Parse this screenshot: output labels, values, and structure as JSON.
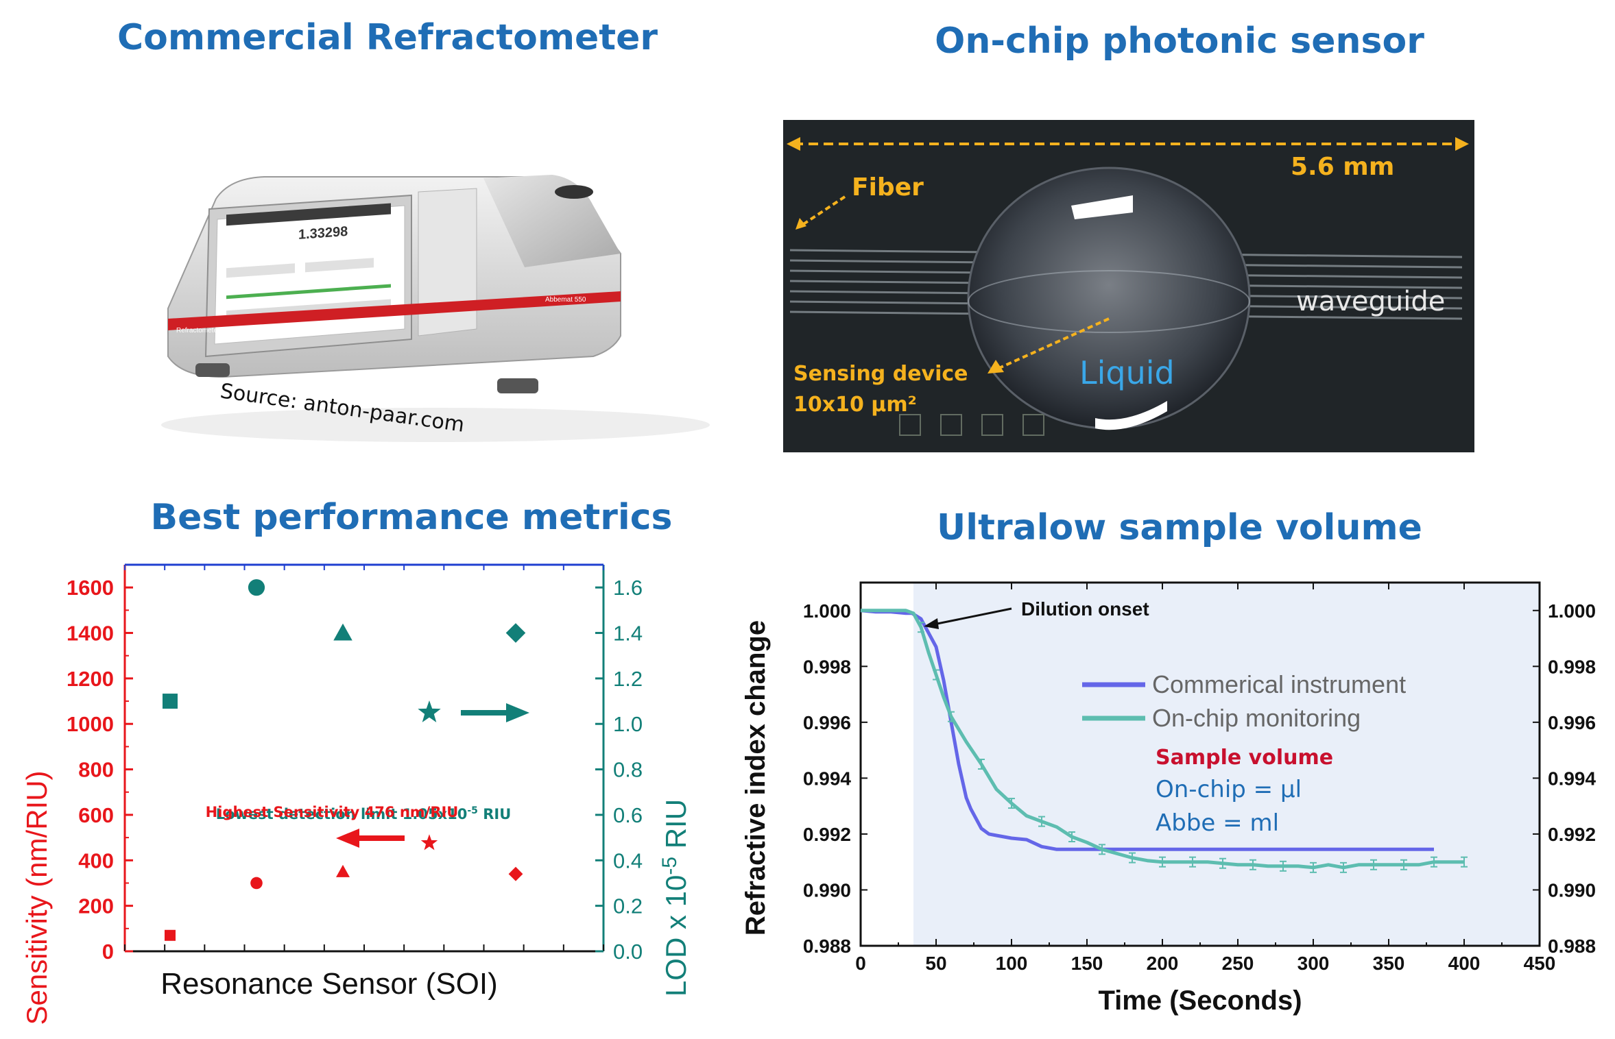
{
  "panels": {
    "top_left": {
      "title": "Commercial Refractometer",
      "source": "Source: anton-paar.com",
      "screen_value": "1.33298",
      "brand_label": "Refractometer",
      "model_label": "Abbemat 550"
    },
    "top_right": {
      "title": "On-chip photonic sensor",
      "scale": "5.6 mm",
      "fiber": "Fiber",
      "waveguide": "waveguide",
      "liquid": "Liquid",
      "sensing_line1": "Sensing device",
      "sensing_line2": "10x10 µm²"
    },
    "bottom_left": {
      "title": "Best performance metrics"
    },
    "bottom_right": {
      "title": "Ultralow sample volume"
    }
  },
  "colors": {
    "title_blue": "#1F6DB5",
    "red": "#E8161B",
    "teal": "#127F78",
    "purple": "#6466E8",
    "teal_line": "#5DBDB0",
    "shade": "#E9EFF9",
    "photo_orange": "#F5B21E"
  },
  "chart_data": [
    {
      "type": "scatter",
      "title": "Best performance metrics",
      "xlabel": "Resonance Sensor (SOI)",
      "ylabel_left": "Sensitivity (nm/RIU)",
      "ylabel_right": "LOD x 10-5 RIU",
      "ylim_left": [
        0,
        1700
      ],
      "ylim_right": [
        0,
        1.7
      ],
      "yticks_left": [
        "0",
        "200",
        "400",
        "600",
        "800",
        "1000",
        "1200",
        "1400",
        "1600"
      ],
      "yticks_right": [
        "0.0",
        "0.2",
        "0.4",
        "0.6",
        "0.8",
        "1.0",
        "1.2",
        "1.4",
        "1.6"
      ],
      "series": [
        {
          "name": "Sensitivity",
          "axis": "left",
          "color": "#E8161B",
          "points": [
            {
              "x": 1,
              "y": 70,
              "marker": "square"
            },
            {
              "x": 2,
              "y": 300,
              "marker": "circle"
            },
            {
              "x": 3,
              "y": 350,
              "marker": "triangle"
            },
            {
              "x": 4,
              "y": 476,
              "marker": "star"
            },
            {
              "x": 5,
              "y": 340,
              "marker": "diamond"
            }
          ]
        },
        {
          "name": "LOD",
          "axis": "right",
          "color": "#127F78",
          "points": [
            {
              "x": 1,
              "y": 1.1,
              "marker": "square"
            },
            {
              "x": 2,
              "y": 1.6,
              "marker": "circle"
            },
            {
              "x": 3,
              "y": 1.4,
              "marker": "triangle"
            },
            {
              "x": 4,
              "y": 1.05,
              "marker": "star"
            },
            {
              "x": 5,
              "y": 1.4,
              "marker": "diamond"
            }
          ]
        }
      ],
      "annotations": {
        "highest_sensitivity": "Highest Sensitivity 476 nm/RIU",
        "lowest_lod": "Lowest detection limit 1.05x10",
        "lowest_lod_exp": "-5",
        "lowest_lod_unit": " RIU"
      }
    },
    {
      "type": "line",
      "title": "Ultralow sample volume",
      "xlabel": "Time (Seconds)",
      "ylabel": "Refractive index change",
      "xlim": [
        0,
        450
      ],
      "ylim": [
        0.988,
        1.001
      ],
      "xticks": [
        "0",
        "50",
        "100",
        "150",
        "200",
        "250",
        "300",
        "350",
        "400",
        "450"
      ],
      "yticks": [
        "0.988",
        "0.990",
        "0.992",
        "0.994",
        "0.996",
        "0.998",
        "1.000"
      ],
      "shaded_region": [
        35,
        450
      ],
      "series": [
        {
          "name": "Commerical instrument",
          "color": "#6466E8",
          "x": [
            0,
            10,
            20,
            30,
            34,
            40,
            50,
            55,
            60,
            65,
            70,
            73,
            80,
            85,
            90,
            100,
            110,
            120,
            130,
            150,
            200,
            250,
            300,
            350,
            380
          ],
          "y": [
            1.0,
            0.99995,
            0.99995,
            0.9999,
            0.9999,
            0.9997,
            0.9987,
            0.9975,
            0.996,
            0.9945,
            0.9933,
            0.9929,
            0.9922,
            0.992,
            0.99195,
            0.99185,
            0.9918,
            0.99155,
            0.99145,
            0.99145,
            0.99145,
            0.99145,
            0.99145,
            0.99145,
            0.99145
          ]
        },
        {
          "name": "On-chip monitoring",
          "color": "#5DBDB0",
          "x": [
            0,
            10,
            20,
            30,
            35,
            40,
            45,
            50,
            55,
            60,
            70,
            80,
            90,
            100,
            110,
            120,
            130,
            140,
            150,
            160,
            170,
            180,
            190,
            200,
            210,
            220,
            230,
            240,
            250,
            260,
            270,
            280,
            290,
            300,
            310,
            320,
            330,
            340,
            350,
            360,
            370,
            380,
            390,
            400
          ],
          "y": [
            1.0,
            1.0,
            1.0,
            1.0,
            0.9999,
            0.9994,
            0.9985,
            0.9977,
            0.9969,
            0.9962,
            0.9953,
            0.9945,
            0.9936,
            0.9931,
            0.99265,
            0.99245,
            0.99225,
            0.9919,
            0.9917,
            0.99145,
            0.9913,
            0.99115,
            0.99105,
            0.991,
            0.991,
            0.991,
            0.991,
            0.99095,
            0.9909,
            0.9909,
            0.99085,
            0.99085,
            0.99085,
            0.9908,
            0.9909,
            0.9908,
            0.9909,
            0.9909,
            0.9909,
            0.9909,
            0.9909,
            0.991,
            0.991,
            0.991
          ]
        }
      ],
      "annotations": {
        "dilution": "Dilution onset",
        "sample_volume": "Sample volume",
        "onchip_volume": "On-chip = µl",
        "abbe_volume": "Abbe = ml"
      }
    }
  ]
}
